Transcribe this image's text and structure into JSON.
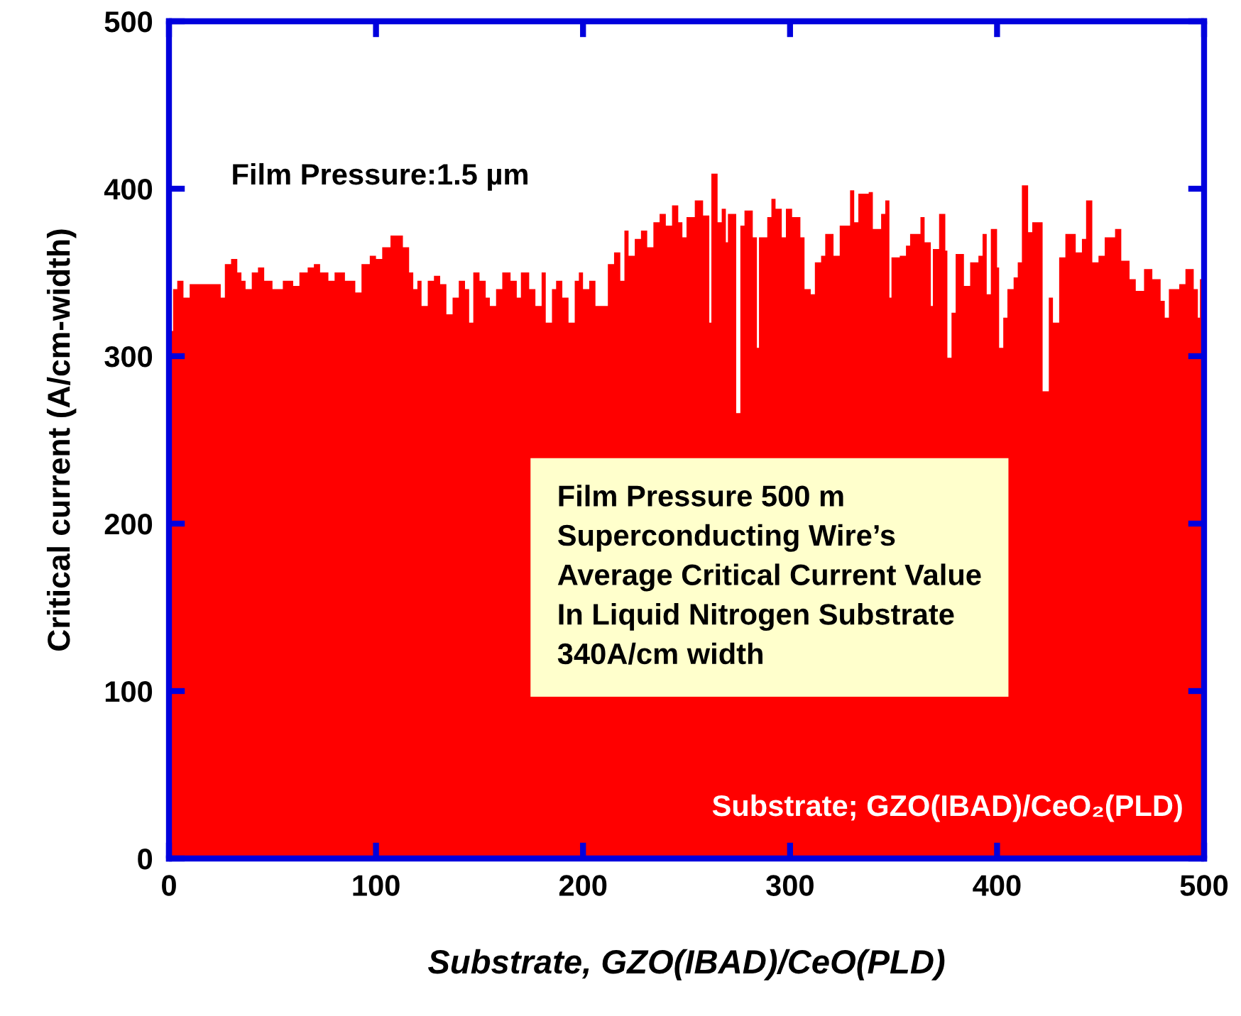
{
  "chart_data": {
    "type": "area",
    "xlabel": "Substrate, GZO(IBAD)/CeO(PLD)",
    "ylabel": "Critical current (A/cm-width)",
    "x": [
      0,
      2,
      4,
      7,
      10,
      20,
      25,
      27,
      30,
      33,
      35,
      37,
      40,
      43,
      46,
      50,
      55,
      60,
      63,
      67,
      70,
      73,
      77,
      80,
      85,
      90,
      93,
      97,
      100,
      103,
      107,
      110,
      113,
      116,
      118,
      120,
      122,
      125,
      128,
      131,
      134,
      137,
      140,
      143,
      145,
      147,
      150,
      153,
      155,
      158,
      161,
      165,
      168,
      170,
      174,
      177,
      180,
      182,
      185,
      187,
      190,
      193,
      196,
      198,
      200,
      203,
      206,
      209,
      212,
      215,
      218,
      220,
      222,
      225,
      228,
      231,
      234,
      237,
      240,
      243,
      246,
      248,
      250,
      254,
      258,
      261,
      262,
      265,
      267,
      269,
      270,
      274,
      276,
      278,
      282,
      284,
      285,
      289,
      291,
      293,
      296,
      298,
      301,
      305,
      307,
      310,
      312,
      315,
      317,
      321,
      324,
      329,
      331,
      333,
      338,
      340,
      344,
      346,
      348,
      349,
      353,
      356,
      358,
      363,
      365,
      368,
      369,
      372,
      375,
      376,
      378,
      380,
      384,
      387,
      391,
      393,
      395,
      397,
      400,
      401,
      403,
      405,
      408,
      410,
      412,
      415,
      417,
      422,
      425,
      427,
      430,
      433,
      438,
      441,
      443,
      446,
      449,
      452,
      457,
      460,
      464,
      467,
      471,
      475,
      479,
      481,
      483,
      488,
      491,
      495,
      497,
      498,
      500
    ],
    "values": [
      315,
      340,
      345,
      335,
      343,
      343,
      335,
      355,
      358,
      350,
      345,
      340,
      350,
      353,
      345,
      340,
      345,
      342,
      350,
      353,
      355,
      350,
      345,
      350,
      345,
      338,
      355,
      360,
      358,
      365,
      372,
      372,
      365,
      350,
      340,
      345,
      330,
      345,
      348,
      343,
      325,
      335,
      345,
      340,
      320,
      350,
      345,
      335,
      330,
      340,
      350,
      345,
      335,
      350,
      340,
      330,
      350,
      320,
      340,
      345,
      335,
      320,
      345,
      350,
      340,
      345,
      330,
      330,
      355,
      362,
      345,
      375,
      360,
      370,
      375,
      365,
      380,
      385,
      378,
      390,
      380,
      371,
      383,
      393,
      384,
      320,
      409,
      380,
      388,
      368,
      385,
      266,
      378,
      387,
      371,
      305,
      371,
      383,
      394,
      388,
      371,
      388,
      383,
      371,
      340,
      337,
      356,
      360,
      373,
      360,
      378,
      399,
      380,
      397,
      398,
      376,
      385,
      393,
      335,
      359,
      360,
      366,
      373,
      383,
      368,
      330,
      364,
      385,
      363,
      299,
      326,
      361,
      342,
      356,
      360,
      373,
      337,
      376,
      353,
      305,
      323,
      340,
      347,
      356,
      402,
      374,
      380,
      279,
      335,
      320,
      359,
      373,
      362,
      370,
      393,
      356,
      360,
      371,
      376,
      357,
      346,
      339,
      352,
      346,
      333,
      323,
      340,
      343,
      352,
      340,
      323,
      346,
      320
    ],
    "color": "#ff0000",
    "xlim": [
      0,
      500
    ],
    "xticks": [
      0,
      100,
      200,
      300,
      400,
      500
    ],
    "ylim": [
      0,
      500
    ],
    "yticks": [
      0,
      100,
      200,
      300,
      400,
      500
    ],
    "annotations": [
      "Film Pressure:1.5 µm",
      "Film Pressure 500 m\nSuperconducting Wire’s\nAverage Critical Current Value\nIn Liquid Nitrogen Substrate\n340A/cm width",
      "Substrate; GZO(IBAD)/CeO₂(PLD)"
    ]
  }
}
